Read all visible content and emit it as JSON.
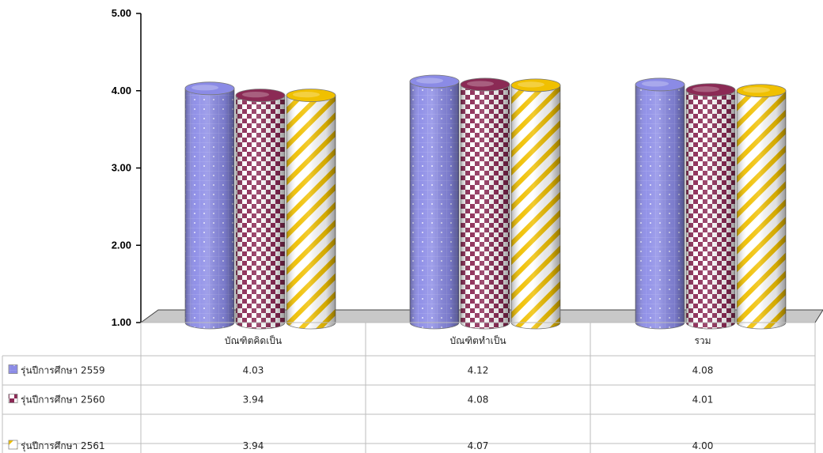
{
  "chart_data": {
    "type": "bar",
    "categories": [
      "บัณฑิตคิดเป็น",
      "บัณฑิตทำเป็น",
      "รวม"
    ],
    "series": [
      {
        "name": "รุ่นปีการศึกษา  2559",
        "values": [
          4.03,
          4.12,
          4.08
        ],
        "color": "#8b8be6",
        "pattern": "dots"
      },
      {
        "name": "รุ่นปีการศึกษา  2560",
        "values": [
          3.94,
          4.08,
          4.01
        ],
        "color": "#8b2a55",
        "pattern": "checker"
      },
      {
        "name": "รุ่นปีการศึกษา  2561",
        "values": [
          3.94,
          4.07,
          4.0
        ],
        "color": "#f0c000",
        "pattern": "diagonal"
      }
    ],
    "value_labels": [
      [
        "4.03",
        "4.12",
        "4.08"
      ],
      [
        "3.94",
        "4.08",
        "4.01"
      ],
      [
        "3.94",
        "4.07",
        "4.00"
      ]
    ],
    "ylim": [
      1.0,
      5.0
    ],
    "yticks": [
      "1.00",
      "2.00",
      "3.00",
      "4.00",
      "5.00"
    ],
    "ytick_values": [
      1,
      2,
      3,
      4,
      5
    ],
    "legend": "data-table-left",
    "grid": false,
    "title": "",
    "xlabel": "",
    "ylabel": ""
  }
}
